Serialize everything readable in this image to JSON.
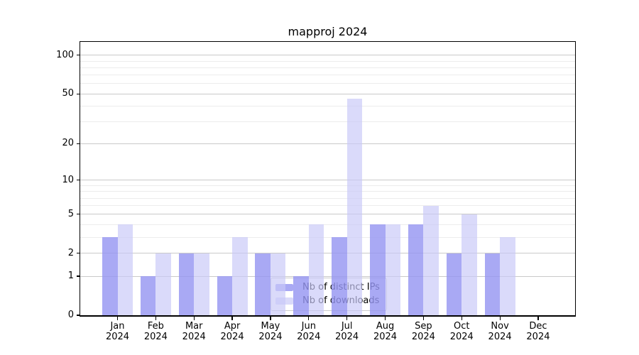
{
  "title": "mapproj 2024",
  "chart_data": {
    "type": "bar",
    "title": "mapproj 2024",
    "x_categories": [
      "Jan",
      "Feb",
      "Mar",
      "Apr",
      "May",
      "Jun",
      "Jul",
      "Aug",
      "Sep",
      "Oct",
      "Nov",
      "Dec"
    ],
    "x_year_label": "2024",
    "series": [
      {
        "name": "Nb of distinct IPs",
        "color": "rgba(150,150,242,0.82)",
        "values": [
          3,
          1,
          2,
          1,
          2,
          1,
          3,
          4,
          4,
          2,
          2,
          0
        ]
      },
      {
        "name": "Nb of downloads",
        "color": "rgba(200,200,247,0.68)",
        "values": [
          4,
          2,
          2,
          3,
          2,
          4,
          46,
          4,
          6,
          5,
          3,
          0
        ]
      }
    ],
    "yscale": "log1p",
    "ylim": [
      0,
      130
    ],
    "yticks_major": [
      0,
      1,
      2,
      5,
      10,
      20,
      50,
      100
    ],
    "yticks_minor": [
      3,
      4,
      6,
      7,
      8,
      9,
      30,
      40,
      60,
      70,
      80,
      90
    ],
    "grid": {
      "on": true,
      "major_color": "#c9c9c9",
      "minor_color": "#ececec"
    },
    "legend": {
      "location": "lower center",
      "frame_border": "#cccccc",
      "frame_background": "rgba(255,255,255,0.8)"
    }
  }
}
